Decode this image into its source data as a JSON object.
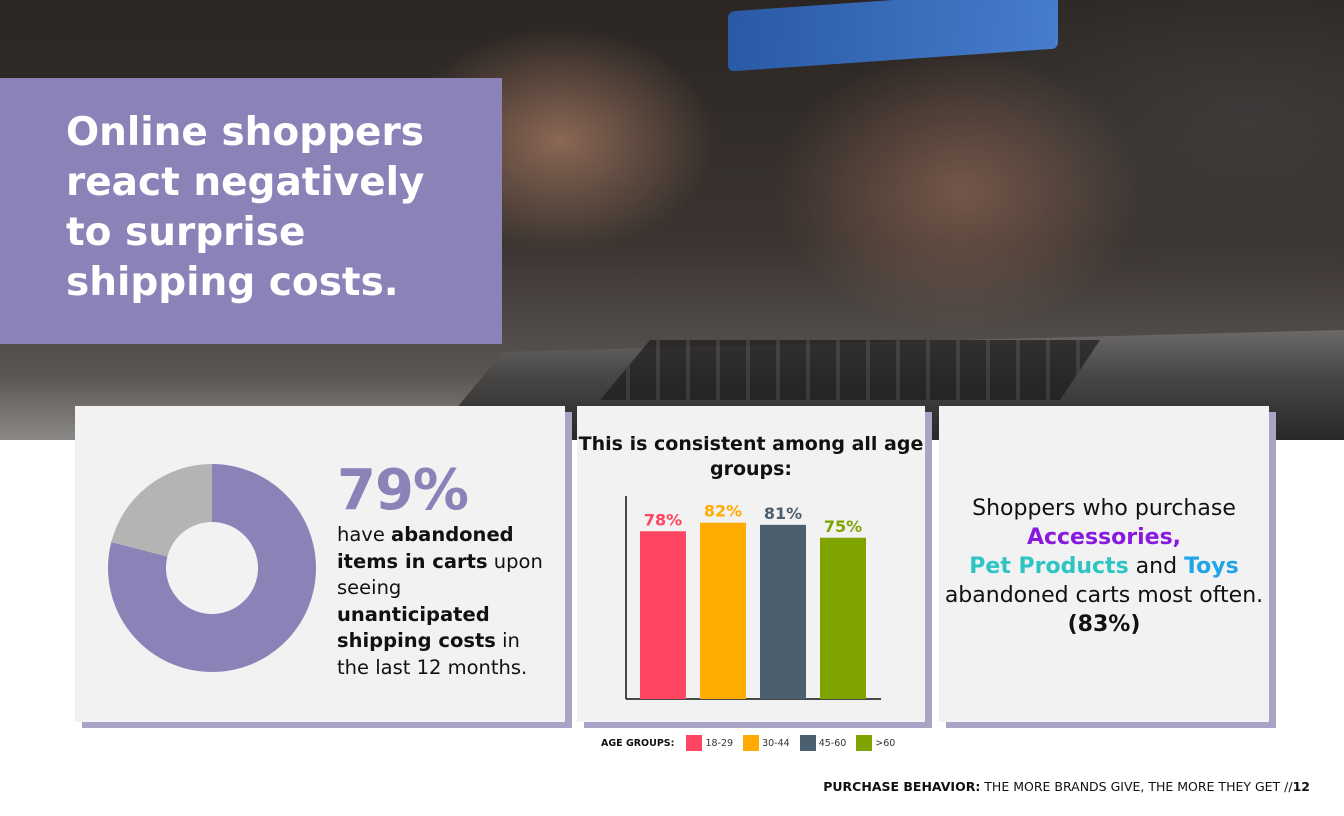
{
  "colors": {
    "accent": "#8b83b8",
    "donut_rest": "#b4b4b4",
    "accessories": "#8a19e0",
    "pet_products": "#2ec4c4",
    "toys": "#21a5e8"
  },
  "hero": {
    "title": "Online shoppers react negatively to surprise shipping costs."
  },
  "stat_panel": {
    "big_value": "79%",
    "desc_1": "have ",
    "desc_2": "abandoned items in carts",
    "desc_3": " upon seeing ",
    "desc_4": "unanticipated shipping costs",
    "desc_5": " in the last 12 months."
  },
  "chart_data": {
    "type": "pie",
    "title": "",
    "values": [
      79,
      21
    ],
    "colors": [
      "#8b83b8",
      "#b4b4b4"
    ]
  },
  "age_chart": {
    "type": "bar",
    "title": "This is consistent among all age groups:",
    "categories": [
      "18-29",
      "30-44",
      "45-60",
      ">60"
    ],
    "values": [
      78,
      82,
      81,
      75
    ],
    "labels": [
      "78%",
      "82%",
      "81%",
      "75%"
    ],
    "colors": [
      "#ff4560",
      "#ffab00",
      "#4c5f6e",
      "#7fa400"
    ],
    "label_colors": [
      "#ff4560",
      "#ffab00",
      "#4c5f6e",
      "#7fa400"
    ],
    "ylim": [
      0,
      100
    ],
    "legend_title": "AGE GROUPS:",
    "legend_placement": "bottom"
  },
  "category_panel": {
    "t1": "Shoppers who purchase ",
    "c1": "Accessories,",
    "c2": "Pet Products",
    "t2": " and ",
    "c3": "Toys",
    "t3": " abandoned carts most often. ",
    "stat": "(83%)"
  },
  "footer": {
    "section": "PURCHASE BEHAVIOR:",
    "text": " THE MORE BRANDS GIVE, THE MORE THEY GET //",
    "page": "12"
  }
}
